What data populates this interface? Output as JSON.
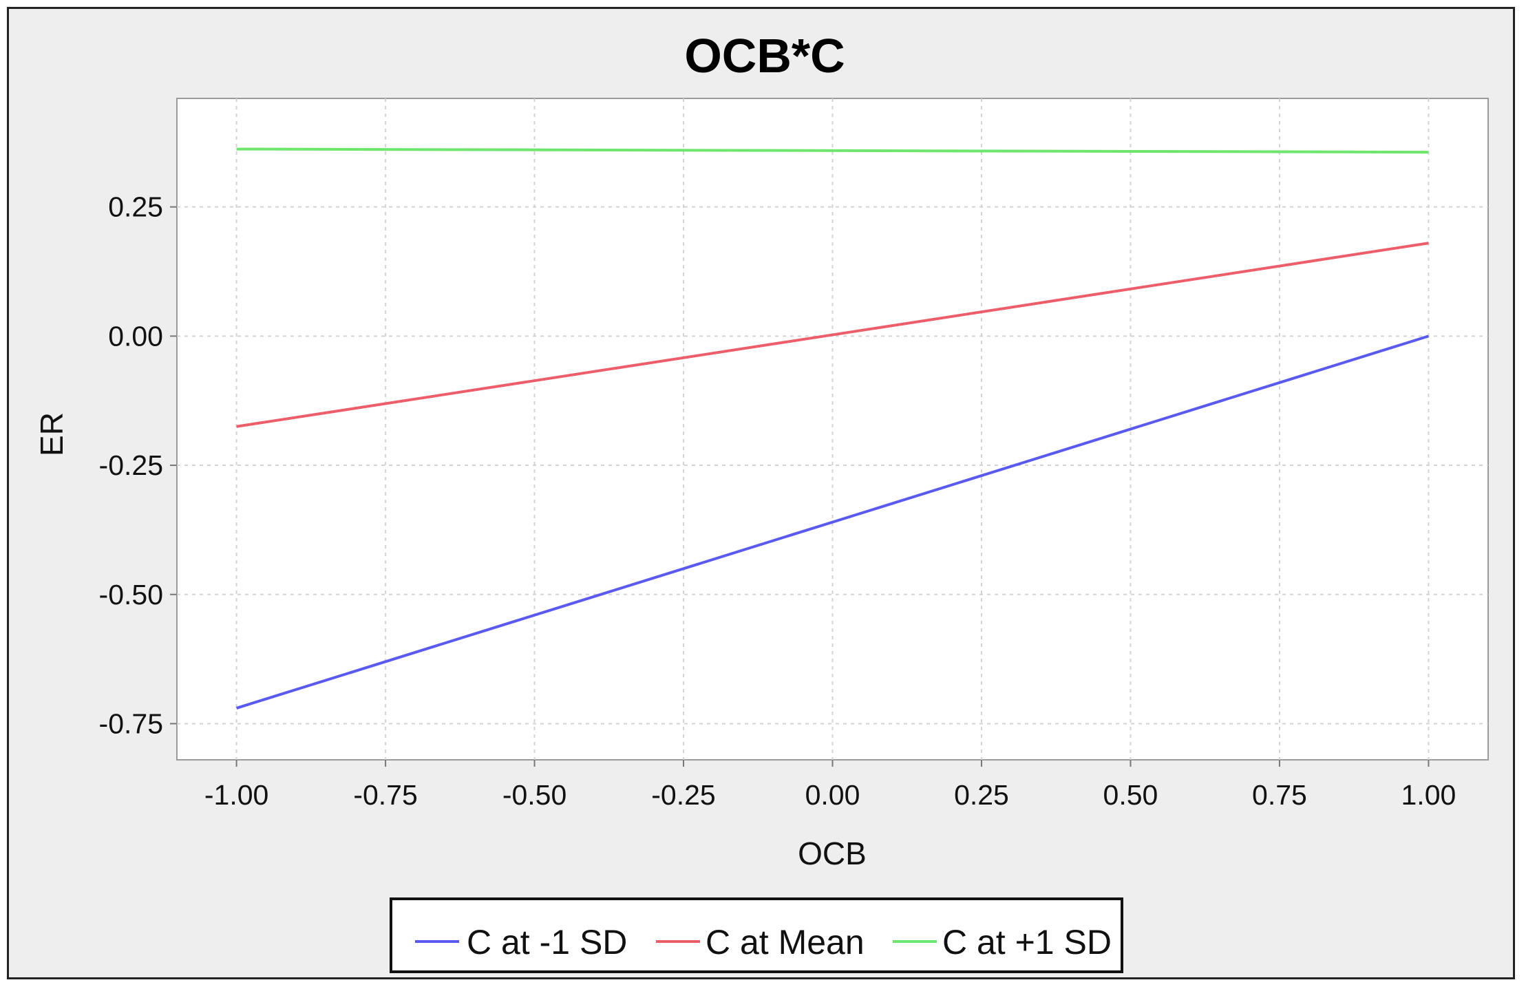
{
  "chart_data": {
    "type": "line",
    "title": "OCB*C",
    "xlabel": "OCB",
    "ylabel": "ER",
    "xlim": [
      -1.1,
      1.1
    ],
    "ylim": [
      -0.82,
      0.46
    ],
    "x_ticks": [
      "-1.00",
      "-0.75",
      "-0.50",
      "-0.25",
      "0.00",
      "0.25",
      "0.50",
      "0.75",
      "1.00"
    ],
    "y_ticks": [
      "0.25",
      "0.00",
      "-0.25",
      "-0.50",
      "-0.75"
    ],
    "grid": true,
    "legend_position": "bottom",
    "colors": {
      "background": "#eeeeee",
      "plot_background": "#ffffff",
      "grid": "#d3d3d3"
    },
    "series": [
      {
        "name": "C at -1 SD",
        "color": "#5a5af0",
        "x": [
          -1.0,
          1.0
        ],
        "y": [
          -0.72,
          0.0
        ]
      },
      {
        "name": "C at Mean",
        "color": "#ec5f6a",
        "x": [
          -1.0,
          1.0
        ],
        "y": [
          -0.175,
          0.18
        ]
      },
      {
        "name": "C at +1 SD",
        "color": "#6ee66e",
        "x": [
          -1.0,
          1.0
        ],
        "y": [
          0.362,
          0.356
        ]
      }
    ]
  }
}
